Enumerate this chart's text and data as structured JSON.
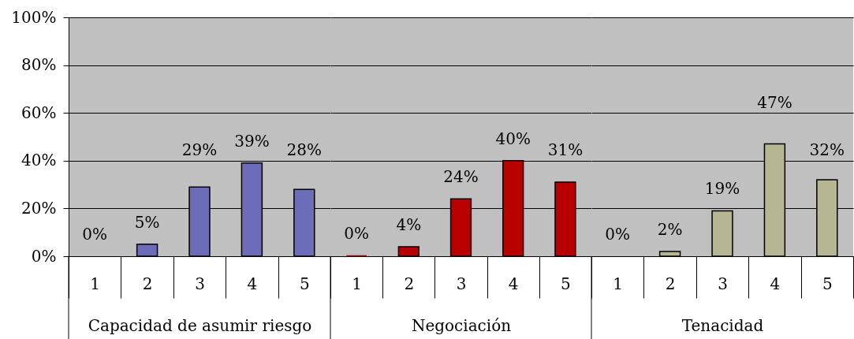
{
  "chart_data": [
    {
      "type": "bar",
      "xlabel": "Capacidad de asumir riesgo",
      "categories": [
        "1",
        "2",
        "3",
        "4",
        "5"
      ],
      "values": [
        0,
        5,
        29,
        39,
        28
      ],
      "value_labels": [
        "0%",
        "5%",
        "29%",
        "39%",
        "28%"
      ],
      "color": "#6c6cb8",
      "ylim": [
        0,
        100
      ],
      "yticks": [
        {
          "value": 0,
          "label": "0%"
        },
        {
          "value": 20,
          "label": "20%"
        },
        {
          "value": 40,
          "label": "40%"
        },
        {
          "value": 60,
          "label": "60%"
        },
        {
          "value": 80,
          "label": "80%"
        },
        {
          "value": 100,
          "label": "100%"
        }
      ],
      "grid": "y"
    },
    {
      "type": "bar",
      "xlabel": "Negociación",
      "categories": [
        "1",
        "2",
        "3",
        "4",
        "5"
      ],
      "values": [
        0.4,
        4,
        24,
        40,
        31
      ],
      "value_labels": [
        "0%",
        "4%",
        "24%",
        "40%",
        "31%"
      ],
      "color": "#b80000",
      "ylim": [
        0,
        100
      ],
      "yticks": [
        0,
        20,
        40,
        60,
        80,
        100
      ],
      "grid": "y",
      "tick_labels": "x"
    },
    {
      "type": "bar",
      "xlabel": "Tenacidad",
      "categories": [
        "1",
        "2",
        "3",
        "4",
        "5"
      ],
      "values": [
        0,
        2,
        19,
        47,
        32
      ],
      "value_labels": [
        "0%",
        "2%",
        "19%",
        "47%",
        "32%"
      ],
      "color": "#b6b692",
      "ylim": [
        0,
        100
      ],
      "yticks": [
        0,
        20,
        40,
        60,
        80,
        100
      ],
      "grid": "y",
      "tick_labels": "x"
    }
  ]
}
